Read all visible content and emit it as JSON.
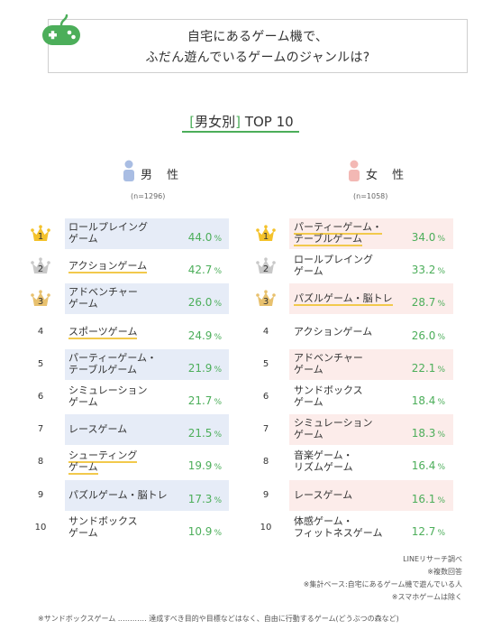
{
  "header": {
    "title_line1": "自宅にあるゲーム機で、",
    "title_line2": "ふだん遊んでいるゲームのジャンルは?"
  },
  "section": {
    "bracket_open": "[",
    "label": "男女別",
    "bracket_close": "]",
    "suffix": "TOP 10"
  },
  "colors": {
    "accent_green": "#4cae5a",
    "male_bg": "#e6ecf7",
    "female_bg": "#fcecea",
    "male_icon": "#a9bde3",
    "female_icon": "#f3b8b4",
    "gold": "#f4c22b",
    "silver": "#c8c8c8",
    "bronze": "#e8c16e",
    "highlight": "#f2c94c"
  },
  "chart_data": {
    "type": "table",
    "unit": "%",
    "male": {
      "label": "男 性",
      "n": "(n=1296)",
      "rows": [
        {
          "rank": "1",
          "label": "ロールプレイング\nゲーム",
          "value": "44.0",
          "highlight": false
        },
        {
          "rank": "2",
          "label": "アクションゲーム",
          "value": "42.7",
          "highlight": true
        },
        {
          "rank": "3",
          "label": "アドベンチャー\nゲーム",
          "value": "26.0",
          "highlight": false
        },
        {
          "rank": "4",
          "label": "スポーツゲーム",
          "value": "24.9",
          "highlight": true
        },
        {
          "rank": "5",
          "label": "パーティーゲーム・\nテーブルゲーム",
          "value": "21.9",
          "highlight": false
        },
        {
          "rank": "6",
          "label": "シミュレーション\nゲーム",
          "value": "21.7",
          "highlight": false
        },
        {
          "rank": "7",
          "label": "レースゲーム",
          "value": "21.5",
          "highlight": false
        },
        {
          "rank": "8",
          "label": "シューティング\nゲーム",
          "value": "19.9",
          "highlight": true
        },
        {
          "rank": "9",
          "label": "パズルゲーム・脳トレ",
          "value": "17.3",
          "highlight": false
        },
        {
          "rank": "10",
          "label": "サンドボックス\nゲーム",
          "value": "10.9",
          "highlight": false
        }
      ]
    },
    "female": {
      "label": "女 性",
      "n": "(n=1058)",
      "rows": [
        {
          "rank": "1",
          "label": "パーティーゲーム・\nテーブルゲーム",
          "value": "34.0",
          "highlight": true
        },
        {
          "rank": "2",
          "label": "ロールプレイング\nゲーム",
          "value": "33.2",
          "highlight": false
        },
        {
          "rank": "3",
          "label": "パズルゲーム・脳トレ",
          "value": "28.7",
          "highlight": true
        },
        {
          "rank": "4",
          "label": "アクションゲーム",
          "value": "26.0",
          "highlight": false
        },
        {
          "rank": "5",
          "label": "アドベンチャー\nゲーム",
          "value": "22.1",
          "highlight": false
        },
        {
          "rank": "6",
          "label": "サンドボックス\nゲーム",
          "value": "18.4",
          "highlight": false
        },
        {
          "rank": "7",
          "label": "シミュレーション\nゲーム",
          "value": "18.3",
          "highlight": false
        },
        {
          "rank": "8",
          "label": "音楽ゲーム・\nリズムゲーム",
          "value": "16.4",
          "highlight": false
        },
        {
          "rank": "9",
          "label": "レースゲーム",
          "value": "16.1",
          "highlight": false
        },
        {
          "rank": "10",
          "label": "体感ゲーム・\nフィットネスゲーム",
          "value": "12.7",
          "highlight": false
        }
      ]
    }
  },
  "notes": [
    "LINEリサーチ調べ",
    "※複数回答",
    "※集計ベース:自宅にあるゲーム機で遊んでいる人",
    "※スマホゲームは除く"
  ],
  "footer_note": "※サンドボックスゲーム ………… 達成すべき目的や目標などはなく、自由に行動するゲーム(どうぶつの森など)"
}
